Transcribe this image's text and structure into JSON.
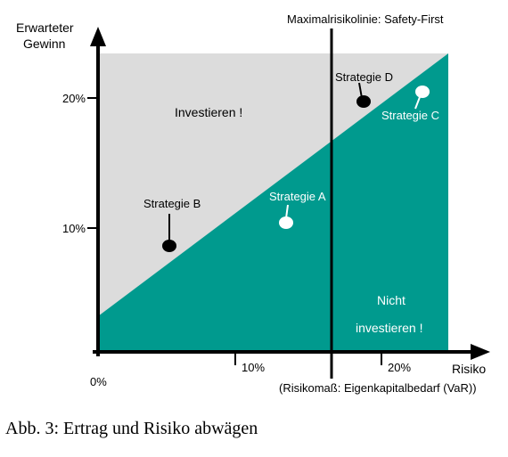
{
  "chart_data": {
    "type": "scatter",
    "title": "",
    "xlabel": "Risiko",
    "xlabel_note": "(Risikomaß: Eigenkapitalbedarf (VaR))",
    "ylabel": "Erwarteter Gewinn",
    "x_ticks": [
      "0%",
      "10%",
      "20%"
    ],
    "y_ticks": [
      "10%",
      "20%"
    ],
    "xlim": [
      0,
      25
    ],
    "ylim": [
      0,
      24
    ],
    "grid": false,
    "legend": "none",
    "threshold_line": {
      "label": "Maximalrisikolinie: Safety-First",
      "x": 17
    },
    "regions": [
      {
        "label": "Investieren !",
        "color": "#dcdcdc"
      },
      {
        "label": "Nicht investieren !",
        "color": "#009a8e"
      }
    ],
    "boundary": {
      "x": [
        0,
        25
      ],
      "y": [
        3,
        23
      ]
    },
    "points": [
      {
        "name": "Strategie A",
        "x": 13.5,
        "y": 10.2,
        "marker": "white"
      },
      {
        "name": "Strategie B",
        "x": 5.2,
        "y": 8.3,
        "marker": "black"
      },
      {
        "name": "Strategie C",
        "x": 23.5,
        "y": 20.4,
        "marker": "white"
      },
      {
        "name": "Strategie D",
        "x": 19.2,
        "y": 19.6,
        "marker": "black"
      }
    ]
  },
  "labels": {
    "y_axis_line1": "Erwarteter",
    "y_axis_line2": "Gewinn",
    "invest": "Investieren !",
    "not_invest_line1": "Nicht",
    "not_invest_line2": "investieren !"
  },
  "caption": "Abb. 3: Ertrag und Risiko abwägen",
  "colors": {
    "teal": "#009a8e",
    "grey": "#dcdcdc",
    "axis": "#000000"
  }
}
